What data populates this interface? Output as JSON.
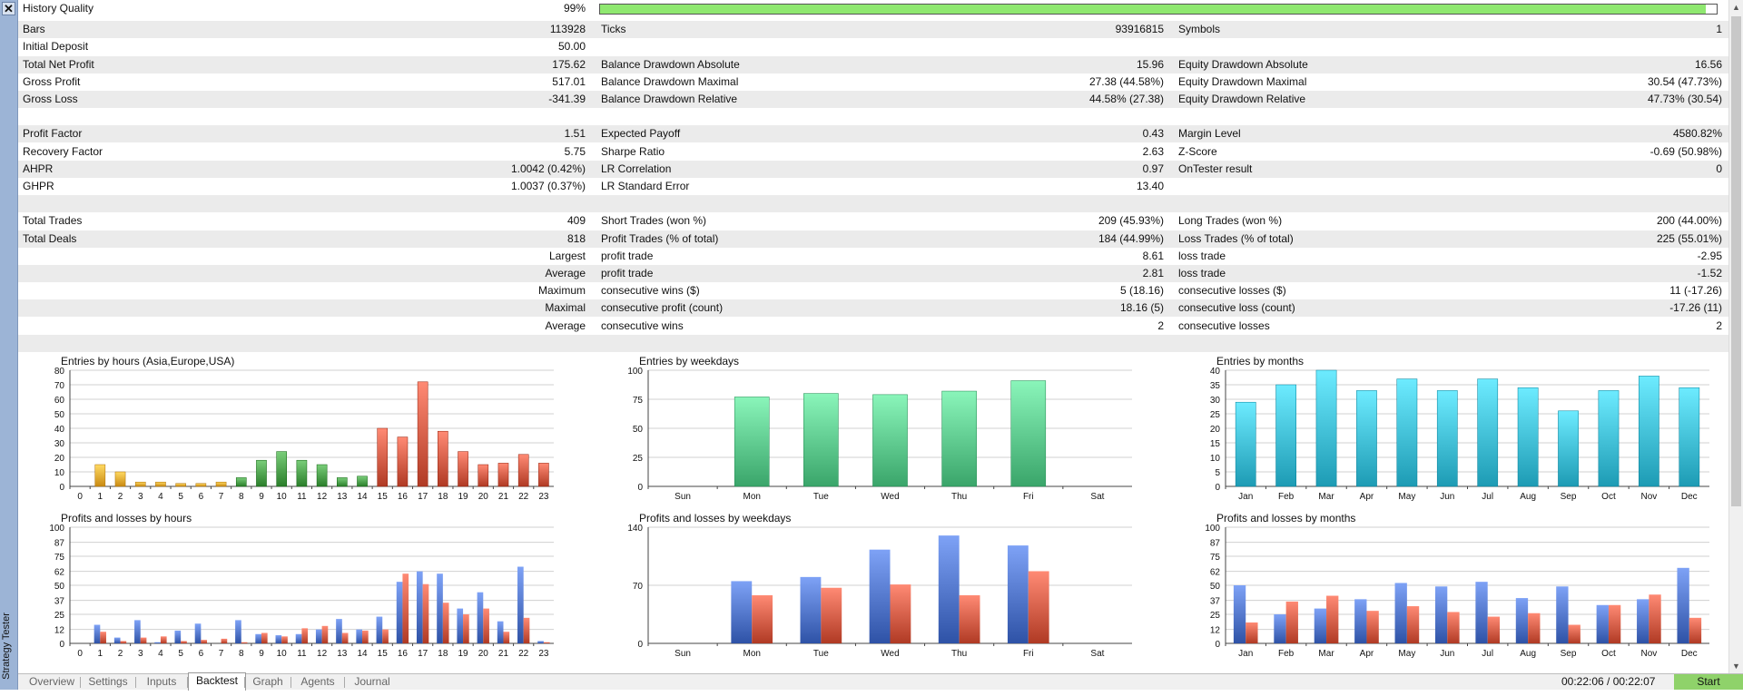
{
  "window_title": "Strategy Tester",
  "stats_rows": [
    {
      "c1l": "History Quality",
      "c1v": "99%",
      "c2l": "",
      "c2v": "",
      "c3l": "",
      "c3v": "",
      "alt": false
    },
    {
      "c1l": "Bars",
      "c1v": "113928",
      "c2l": "Ticks",
      "c2v": "93916815",
      "c3l": "Symbols",
      "c3v": "1",
      "alt": true
    },
    {
      "c1l": "Initial Deposit",
      "c1v": "50.00",
      "c2l": "",
      "c2v": "",
      "c3l": "",
      "c3v": "",
      "alt": false
    },
    {
      "c1l": "Total Net Profit",
      "c1v": "175.62",
      "c2l": "Balance Drawdown Absolute",
      "c2v": "15.96",
      "c3l": "Equity Drawdown Absolute",
      "c3v": "16.56",
      "alt": true
    },
    {
      "c1l": "Gross Profit",
      "c1v": "517.01",
      "c2l": "Balance Drawdown Maximal",
      "c2v": "27.38 (44.58%)",
      "c3l": "Equity Drawdown Maximal",
      "c3v": "30.54 (47.73%)",
      "alt": false
    },
    {
      "c1l": "Gross Loss",
      "c1v": "-341.39",
      "c2l": "Balance Drawdown Relative",
      "c2v": "44.58% (27.38)",
      "c3l": "Equity Drawdown Relative",
      "c3v": "47.73% (30.54)",
      "alt": true
    },
    {
      "c1l": "",
      "c1v": "",
      "c2l": "",
      "c2v": "",
      "c3l": "",
      "c3v": "",
      "alt": false
    },
    {
      "c1l": "Profit Factor",
      "c1v": "1.51",
      "c2l": "Expected Payoff",
      "c2v": "0.43",
      "c3l": "Margin Level",
      "c3v": "4580.82%",
      "alt": true
    },
    {
      "c1l": "Recovery Factor",
      "c1v": "5.75",
      "c2l": "Sharpe Ratio",
      "c2v": "2.63",
      "c3l": "Z-Score",
      "c3v": "-0.69 (50.98%)",
      "alt": false
    },
    {
      "c1l": "AHPR",
      "c1v": "1.0042 (0.42%)",
      "c2l": "LR Correlation",
      "c2v": "0.97",
      "c3l": "OnTester result",
      "c3v": "0",
      "alt": true
    },
    {
      "c1l": "GHPR",
      "c1v": "1.0037 (0.37%)",
      "c2l": "LR Standard Error",
      "c2v": "13.40",
      "c3l": "",
      "c3v": "",
      "alt": false
    },
    {
      "c1l": "",
      "c1v": "",
      "c2l": "",
      "c2v": "",
      "c3l": "",
      "c3v": "",
      "alt": true
    },
    {
      "c1l": "Total Trades",
      "c1v": "409",
      "c2l": "Short Trades (won %)",
      "c2v": "209 (45.93%)",
      "c3l": "Long Trades (won %)",
      "c3v": "200 (44.00%)",
      "alt": false
    },
    {
      "c1l": "Total Deals",
      "c1v": "818",
      "c2l": "Profit Trades (% of total)",
      "c2v": "184 (44.99%)",
      "c3l": "Loss Trades (% of total)",
      "c3v": "225 (55.01%)",
      "alt": true
    },
    {
      "c1l": "",
      "c1v": "Largest",
      "c2l": "profit trade",
      "c2v": "8.61",
      "c3l": "loss trade",
      "c3v": "-2.95",
      "alt": false
    },
    {
      "c1l": "",
      "c1v": "Average",
      "c2l": "profit trade",
      "c2v": "2.81",
      "c3l": "loss trade",
      "c3v": "-1.52",
      "alt": true
    },
    {
      "c1l": "",
      "c1v": "Maximum",
      "c2l": "consecutive wins ($)",
      "c2v": "5 (18.16)",
      "c3l": "consecutive losses ($)",
      "c3v": "11 (-17.26)",
      "alt": false
    },
    {
      "c1l": "",
      "c1v": "Maximal",
      "c2l": "consecutive profit (count)",
      "c2v": "18.16 (5)",
      "c3l": "consecutive loss (count)",
      "c3v": "-17.26 (11)",
      "alt": true
    },
    {
      "c1l": "",
      "c1v": "Average",
      "c2l": "consecutive wins",
      "c2v": "2",
      "c3l": "consecutive losses",
      "c3v": "2",
      "alt": false
    },
    {
      "c1l": "",
      "c1v": "",
      "c2l": "",
      "c2v": "",
      "c3l": "",
      "c3v": "",
      "alt": true
    }
  ],
  "history_quality_fraction": 0.99,
  "colors": {
    "asia": "#c98a12",
    "europe": "#2a7e2a",
    "usa": "#b03a24",
    "weekday": "#3aa56a",
    "month": "#1d9bb4",
    "profit": "#2e52a6",
    "loss": "#b03a24"
  },
  "chart_data": [
    {
      "id": "entries_hours",
      "type": "bar",
      "title": "Entries by hours (Asia,Europe,USA)",
      "categories": [
        "0",
        "1",
        "2",
        "3",
        "4",
        "5",
        "6",
        "7",
        "8",
        "9",
        "10",
        "11",
        "12",
        "13",
        "14",
        "15",
        "16",
        "17",
        "18",
        "19",
        "20",
        "21",
        "22",
        "23"
      ],
      "values": [
        0,
        15,
        10,
        3,
        3,
        2,
        2,
        3,
        6,
        18,
        24,
        18,
        15,
        6,
        7,
        40,
        34,
        72,
        38,
        24,
        15,
        16,
        22,
        16
      ],
      "groups": [
        "asia",
        "asia",
        "asia",
        "asia",
        "asia",
        "asia",
        "asia",
        "asia",
        "europe",
        "europe",
        "europe",
        "europe",
        "europe",
        "europe",
        "europe",
        "usa",
        "usa",
        "usa",
        "usa",
        "usa",
        "usa",
        "usa",
        "usa",
        "usa"
      ],
      "ylim": [
        0,
        80
      ],
      "yticks": [
        0,
        10,
        20,
        30,
        40,
        50,
        60,
        70,
        80
      ],
      "grid": true
    },
    {
      "id": "entries_weekdays",
      "type": "bar",
      "title": "Entries by weekdays",
      "categories": [
        "Sun",
        "Mon",
        "Tue",
        "Wed",
        "Thu",
        "Fri",
        "Sat"
      ],
      "values": [
        0,
        77,
        80,
        79,
        82,
        91,
        0
      ],
      "ylim": [
        0,
        100
      ],
      "yticks": [
        0,
        25,
        50,
        75,
        100
      ],
      "grid": true
    },
    {
      "id": "entries_months",
      "type": "bar",
      "title": "Entries by months",
      "categories": [
        "Jan",
        "Feb",
        "Mar",
        "Apr",
        "May",
        "Jun",
        "Jul",
        "Aug",
        "Sep",
        "Oct",
        "Nov",
        "Dec"
      ],
      "values": [
        29,
        35,
        40,
        33,
        37,
        33,
        37,
        34,
        26,
        33,
        38,
        34
      ],
      "ylim": [
        0,
        40
      ],
      "yticks": [
        0,
        5,
        10,
        15,
        20,
        25,
        30,
        35,
        40
      ],
      "grid": true
    },
    {
      "id": "pl_hours",
      "type": "bar",
      "title": "Profits and losses by hours",
      "categories": [
        "0",
        "1",
        "2",
        "3",
        "4",
        "5",
        "6",
        "7",
        "8",
        "9",
        "10",
        "11",
        "12",
        "13",
        "14",
        "15",
        "16",
        "17",
        "18",
        "19",
        "20",
        "21",
        "22",
        "23"
      ],
      "series": [
        {
          "key": "profit",
          "values": [
            0,
            16,
            5,
            20,
            1,
            11,
            17,
            0,
            20,
            8,
            7,
            8,
            12,
            21,
            12,
            23,
            53,
            62,
            60,
            30,
            44,
            19,
            66,
            2
          ]
        },
        {
          "key": "loss",
          "values": [
            0,
            10,
            2,
            5,
            6,
            2,
            3,
            4,
            1,
            9,
            6,
            13,
            15,
            9,
            11,
            12,
            60,
            51,
            35,
            25,
            30,
            10,
            22,
            1
          ]
        }
      ],
      "ylim": [
        0,
        100
      ],
      "yticks": [
        0,
        12,
        25,
        37,
        50,
        62,
        75,
        87,
        100
      ],
      "grid": true
    },
    {
      "id": "pl_weekdays",
      "type": "bar",
      "title": "Profits and losses by weekdays",
      "categories": [
        "Sun",
        "Mon",
        "Tue",
        "Wed",
        "Thu",
        "Fri",
        "Sat"
      ],
      "series": [
        {
          "key": "profit",
          "values": [
            0,
            75,
            80,
            113,
            130,
            118,
            0
          ]
        },
        {
          "key": "loss",
          "values": [
            0,
            58,
            67,
            71,
            58,
            87,
            0
          ]
        }
      ],
      "ylim": [
        0,
        140
      ],
      "yticks": [
        0,
        70,
        140
      ],
      "grid": true
    },
    {
      "id": "pl_months",
      "type": "bar",
      "title": "Profits and losses by months",
      "categories": [
        "Jan",
        "Feb",
        "Mar",
        "Apr",
        "May",
        "Jun",
        "Jul",
        "Aug",
        "Sep",
        "Oct",
        "Nov",
        "Dec"
      ],
      "series": [
        {
          "key": "profit",
          "values": [
            50,
            25,
            30,
            38,
            52,
            49,
            53,
            39,
            49,
            33,
            38,
            65
          ]
        },
        {
          "key": "loss",
          "values": [
            18,
            36,
            41,
            28,
            32,
            27,
            23,
            26,
            16,
            33,
            42,
            22
          ]
        }
      ],
      "ylim": [
        0,
        100
      ],
      "yticks": [
        0,
        12,
        25,
        37,
        50,
        62,
        75,
        87,
        100
      ],
      "grid": true
    }
  ],
  "tabs": [
    {
      "label": "Overview",
      "active": false
    },
    {
      "label": "Settings",
      "active": false
    },
    {
      "label": "Inputs",
      "active": false
    },
    {
      "label": "Backtest",
      "active": true
    },
    {
      "label": "Graph",
      "active": false
    },
    {
      "label": "Agents",
      "active": false
    },
    {
      "label": "Journal",
      "active": false
    }
  ],
  "timer": "00:22:06 / 00:22:07",
  "start_label": "Start"
}
